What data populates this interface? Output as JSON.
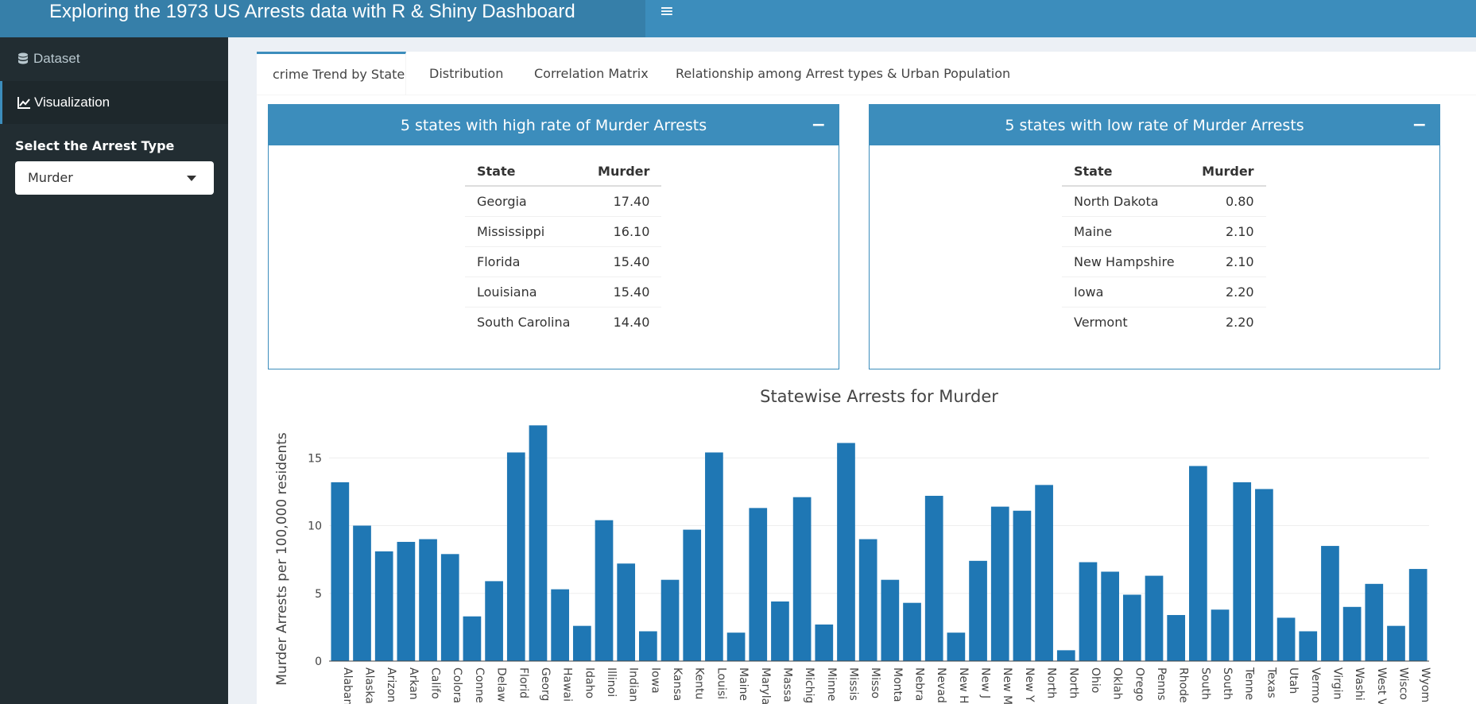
{
  "header": {
    "title": "Exploring the 1973 US Arrests data with R & Shiny Dashboard",
    "menu_icon": "hamburger-icon"
  },
  "sidebar": {
    "items": [
      {
        "label": "Dataset",
        "icon": "database-icon"
      },
      {
        "label": "Visualization",
        "icon": "line-chart-icon"
      }
    ],
    "select_label": "Select the Arrest Type",
    "select_value": "Murder"
  },
  "tabs": [
    {
      "label": "crime Trend by State"
    },
    {
      "label": "Distribution"
    },
    {
      "label": "Correlation Matrix"
    },
    {
      "label": "Relationship among Arrest types & Urban Population"
    }
  ],
  "colors": {
    "header": "#3c8dbc",
    "sidebar": "#222d32",
    "bar": "#1f77b4"
  },
  "high_box": {
    "title": "5 states with high rate of Murder Arrests",
    "columns": [
      "State",
      "Murder"
    ],
    "rows": [
      [
        "Georgia",
        "17.40"
      ],
      [
        "Mississippi",
        "16.10"
      ],
      [
        "Florida",
        "15.40"
      ],
      [
        "Louisiana",
        "15.40"
      ],
      [
        "South Carolina",
        "14.40"
      ]
    ]
  },
  "low_box": {
    "title": "5 states with low rate of Murder Arrests",
    "columns": [
      "State",
      "Murder"
    ],
    "rows": [
      [
        "North Dakota",
        "0.80"
      ],
      [
        "Maine",
        "2.10"
      ],
      [
        "New Hampshire",
        "2.10"
      ],
      [
        "Iowa",
        "2.20"
      ],
      [
        "Vermont",
        "2.20"
      ]
    ]
  },
  "chart_data": {
    "type": "bar",
    "title": "Statewise Arrests for Murder",
    "ylabel": "Murder Arrests per 100,000 residents",
    "xlabel": "",
    "ylim": [
      0,
      18
    ],
    "yticks": [
      0,
      5,
      10,
      15
    ],
    "grid": true,
    "categories": [
      "Alabama",
      "Alaska",
      "Arizona",
      "Arkansas",
      "California",
      "Colorado",
      "Connecticut",
      "Delaware",
      "Florida",
      "Georgia",
      "Hawaii",
      "Idaho",
      "Illinois",
      "Indiana",
      "Iowa",
      "Kansas",
      "Kentucky",
      "Louisiana",
      "Maine",
      "Maryland",
      "Massachusetts",
      "Michigan",
      "Minnesota",
      "Mississippi",
      "Missouri",
      "Montana",
      "Nebraska",
      "Nevada",
      "New Hampshire",
      "New Jersey",
      "New Mexico",
      "New York",
      "North Carolina",
      "North Dakota",
      "Ohio",
      "Oklahoma",
      "Oregon",
      "Pennsylvania",
      "Rhode Island",
      "South Carolina",
      "South Dakota",
      "Tennessee",
      "Texas",
      "Utah",
      "Vermont",
      "Virginia",
      "Washington",
      "West Virginia",
      "Wisconsin",
      "Wyoming"
    ],
    "tick_labels": [
      "Alaban",
      "Alaska",
      "Arizon",
      "Arkan",
      "Califo",
      "Colora",
      "Conne",
      "Delaw",
      "Florid",
      "Georg",
      "Hawai",
      "Idaho",
      "Illinoi",
      "Indian",
      "Iowa",
      "Kansa",
      "Kentu",
      "Louisi",
      "Maine",
      "Maryla",
      "Massa",
      "Michig",
      "Minne",
      "Missis",
      "Misso",
      "Monta",
      "Nebra",
      "Nevad",
      "New H",
      "New J",
      "New M",
      "New Y",
      "North",
      "North",
      "Ohio",
      "Oklah",
      "Orego",
      "Penns",
      "Rhode",
      "South",
      "South",
      "Tenne",
      "Texas",
      "Utah",
      "Vermo",
      "Virgin",
      "Washi",
      "West V",
      "Wisco",
      "Wyom"
    ],
    "values": [
      13.2,
      10.0,
      8.1,
      8.8,
      9.0,
      7.9,
      3.3,
      5.9,
      15.4,
      17.4,
      5.3,
      2.6,
      10.4,
      7.2,
      2.2,
      6.0,
      9.7,
      15.4,
      2.1,
      11.3,
      4.4,
      12.1,
      2.7,
      16.1,
      9.0,
      6.0,
      4.3,
      12.2,
      2.1,
      7.4,
      11.4,
      11.1,
      13.0,
      0.8,
      7.3,
      6.6,
      4.9,
      6.3,
      3.4,
      14.4,
      3.8,
      13.2,
      12.7,
      3.2,
      2.2,
      8.5,
      4.0,
      5.7,
      2.6,
      6.8
    ]
  }
}
